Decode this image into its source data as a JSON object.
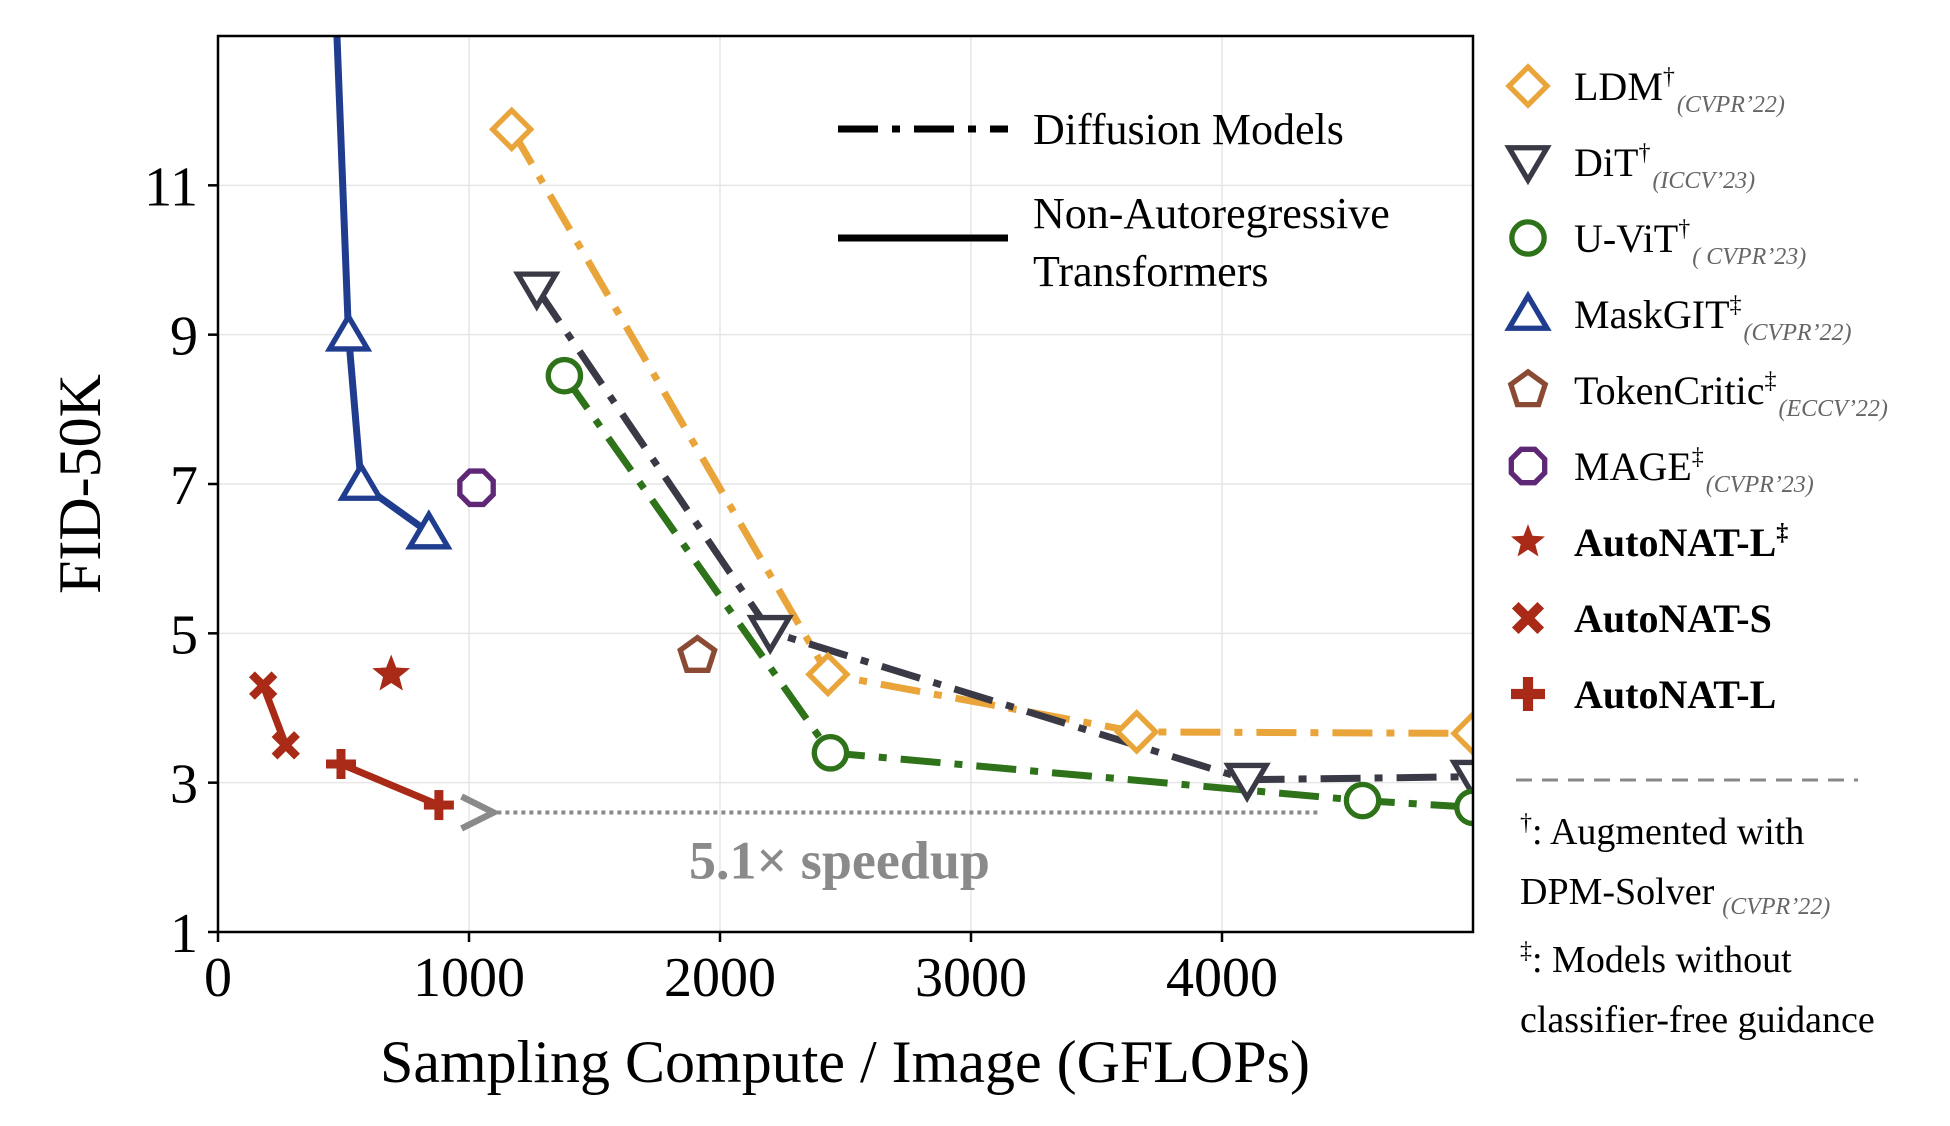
{
  "chart_data": {
    "type": "line",
    "title": "",
    "xlabel": "Sampling Compute / Image (GFLOPs)",
    "ylabel": "FID-50K",
    "xlim": [
      0,
      5000
    ],
    "ylim": [
      1,
      13
    ],
    "xticks": [
      "0",
      "1000",
      "2000",
      "3000",
      "4000"
    ],
    "yticks": [
      "1",
      "3",
      "5",
      "7",
      "9",
      "11"
    ],
    "grid": true,
    "legend_position": "outside-right",
    "style_legend": {
      "dashdot_label": "Diffusion Models",
      "solid_label_line1": "Non-Autoregressive",
      "solid_label_line2": "Transformers"
    },
    "series": [
      {
        "name": "LDM",
        "sup": "†",
        "venue": "(CVPR’22)",
        "bold": false,
        "color": "#E9A43A",
        "marker": "diamond",
        "line": "dashdot",
        "points": [
          [
            1170,
            11.75
          ],
          [
            2430,
            4.45
          ],
          [
            3660,
            3.68
          ],
          [
            5000,
            3.66
          ]
        ]
      },
      {
        "name": "DiT",
        "sup": "†",
        "venue": "(ICCV’23)",
        "bold": false,
        "color": "#3A3A46",
        "marker": "triangle-down",
        "line": "dashdot",
        "points": [
          [
            1270,
            9.62
          ],
          [
            2200,
            5.02
          ],
          [
            4100,
            3.04
          ],
          [
            5000,
            3.08
          ]
        ]
      },
      {
        "name": "U-ViT",
        "sup": "†",
        "venue": "( CVPR’23)",
        "bold": false,
        "color": "#2E7219",
        "marker": "circle",
        "line": "dashdot",
        "points": [
          [
            1380,
            8.45
          ],
          [
            2440,
            3.4
          ],
          [
            4560,
            2.76
          ],
          [
            5000,
            2.67
          ]
        ]
      },
      {
        "name": "MaskGIT",
        "sup": "‡",
        "venue": "(CVPR’22)",
        "bold": false,
        "color": "#1F3C8F",
        "marker": "triangle-up",
        "line": "solid",
        "points": [
          [
            460,
            14.2
          ],
          [
            520,
            9.0
          ],
          [
            570,
            7.0
          ],
          [
            840,
            6.35
          ]
        ]
      },
      {
        "name": "TokenCritic",
        "sup": "‡",
        "venue": "(ECCV’22)",
        "bold": false,
        "color": "#8B4A33",
        "marker": "pentagon",
        "line": "none",
        "points": [
          [
            1910,
            4.7
          ]
        ]
      },
      {
        "name": "MAGE",
        "sup": "‡",
        "venue": "(CVPR’23)",
        "bold": false,
        "color": "#5E2876",
        "marker": "octagon",
        "line": "none",
        "points": [
          [
            1030,
            6.95
          ]
        ]
      },
      {
        "name": "AutoNAT-L",
        "sup": "‡",
        "venue": "",
        "bold": true,
        "color": "#A82A17",
        "marker": "star",
        "line": "none",
        "points": [
          [
            690,
            4.45
          ]
        ]
      },
      {
        "name": "AutoNAT-S",
        "sup": "",
        "venue": "",
        "bold": true,
        "color": "#A82A17",
        "marker": "x",
        "line": "solid",
        "points": [
          [
            180,
            4.3
          ],
          [
            270,
            3.5
          ]
        ]
      },
      {
        "name": "AutoNAT-L",
        "sup": "",
        "venue": "",
        "bold": true,
        "color": "#A82A17",
        "marker": "plus",
        "line": "solid",
        "points": [
          [
            490,
            3.25
          ],
          [
            880,
            2.7
          ]
        ]
      }
    ],
    "annotations": {
      "speedup_label": "5.1× speedup",
      "arrow_from": [
        4380,
        2.6
      ],
      "arrow_to": [
        1050,
        2.6
      ]
    },
    "notes": {
      "dagger": "†",
      "dagger_text": ": Augmented with",
      "dagger_text2": "DPM-Solver",
      "dagger_venue": "(CVPR’22)",
      "ddagger": "‡",
      "ddagger_text": ": Models without",
      "ddagger_text2": "classifier-free guidance"
    }
  }
}
